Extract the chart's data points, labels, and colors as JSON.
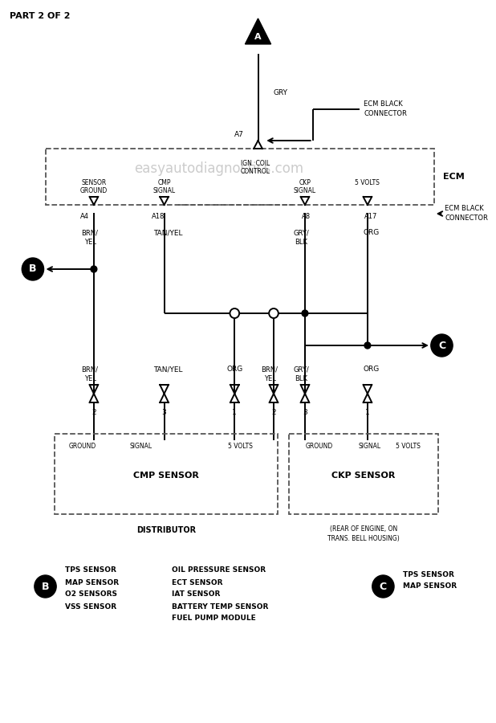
{
  "bg_color": "#ffffff",
  "lc": "#000000",
  "lw": 1.4,
  "title": "PART 2 OF 2",
  "watermark": "easyautodiagnostics.com",
  "watermark_color": "#cccccc",
  "ecm_label": "ECM",
  "ign_coil": "IGN. COIL\nCONTROL",
  "ecm_black": "ECM BLACK\nCONNECTOR",
  "gry_label": "GRY",
  "a7_label": "A7",
  "a4_label": "A4",
  "a18_label": "A18",
  "a8_label": "A8",
  "a17_label": "A17",
  "brn_yel": "BRN/\nYEL",
  "tan_yel": "TAN/YEL",
  "gry_blk": "GRY/\nBLK",
  "org": "ORG",
  "sensor_ground": "SENSOR\nGROUND",
  "cmp_signal": "CMP\nSIGNAL",
  "ckp_signal": "CKP\nSIGNAL",
  "five_volts": "5 VOLTS",
  "cmp_sensor": "CMP SENSOR",
  "ckp_sensor": "CKP SENSOR",
  "distributor": "DISTRIBUTOR",
  "rear_note1": "(REAR OF ENGINE, ON",
  "rear_note2": "TRANS. BELL HOUSING)",
  "ground_lbl": "GROUND",
  "signal_lbl": "SIGNAL",
  "legend_B_list": [
    "TPS SENSOR",
    "MAP SENSOR",
    "O2 SENSORS",
    "VSS SENSOR"
  ],
  "legend_B_right": [
    "OIL PRESSURE SENSOR",
    "ECT SENSOR",
    "IAT SENSOR",
    "BATTERY TEMP SENSOR",
    "FUEL PUMP MODULE"
  ],
  "legend_C_list": [
    "TPS SENSOR",
    "MAP SENSOR"
  ]
}
